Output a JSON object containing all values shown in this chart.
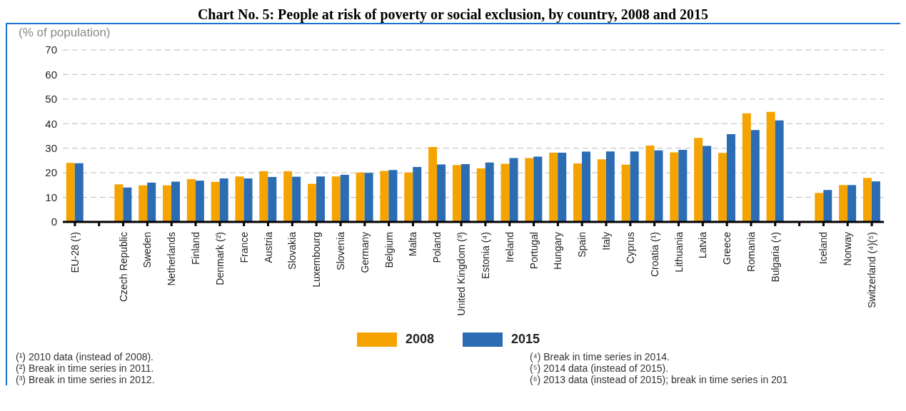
{
  "chart_data": {
    "type": "bar",
    "title": "Chart No. 5: People at risk of poverty or social exclusion, by country, 2008 and 2015",
    "ylabel": "(% of population)",
    "categories": [
      "EU-28 (¹)",
      null,
      "Czech Republic",
      "Sweden",
      "Netherlands",
      "Finland",
      "Denmark (²)",
      "France",
      "Austria",
      "Slovakia",
      "Luxembourg",
      "Slovenia",
      "Germany",
      "Belgium",
      "Malta",
      "Poland",
      "United Kingdom (³)",
      "Estonia (⁴)",
      "Ireland",
      "Portugal",
      "Hungary",
      "Spain",
      "Italy",
      "Cyprus",
      "Croatia (¹)",
      "Lithuania",
      "Latvia",
      "Greece",
      "Romania",
      "Bulgaria (⁴)",
      null,
      "Iceland",
      "Norway",
      "Switzerland (⁴)(⁵)"
    ],
    "series": [
      {
        "name": "2008",
        "color": "#f5a300",
        "values": [
          24.0,
          null,
          15.3,
          14.9,
          14.9,
          17.4,
          16.3,
          18.5,
          20.6,
          20.6,
          15.5,
          18.5,
          20.1,
          20.8,
          20.1,
          30.5,
          23.2,
          21.8,
          23.7,
          26.0,
          28.2,
          23.8,
          25.5,
          23.3,
          31.1,
          28.3,
          34.2,
          28.1,
          44.2,
          44.8,
          null,
          11.8,
          15.0,
          17.9
        ]
      },
      {
        "name": "2015",
        "color": "#2b6cb3",
        "values": [
          23.9,
          null,
          14.0,
          16.0,
          16.4,
          16.8,
          17.7,
          17.7,
          18.3,
          18.4,
          18.5,
          19.2,
          20.0,
          21.1,
          22.4,
          23.4,
          23.5,
          24.2,
          26.0,
          26.6,
          28.2,
          28.6,
          28.7,
          28.7,
          29.1,
          29.3,
          30.9,
          35.7,
          37.4,
          41.3,
          null,
          13.0,
          15.0,
          16.5
        ]
      }
    ],
    "ylim": [
      0,
      70
    ],
    "yticks": [
      0,
      10,
      20,
      30,
      40,
      50,
      60,
      70
    ],
    "grid": "y",
    "legend": "bottom",
    "annotations": [
      "(¹) 2010 data (instead of 2008).",
      "(²) Break in time series in 2011.",
      "(³) Break in time series in 2012.",
      "(⁴) Break in time series in 2014.",
      "(⁵) 2014 data (instead of 2015).",
      "(⁶) 2013 data (instead of 2015); break in time series in 201"
    ]
  }
}
